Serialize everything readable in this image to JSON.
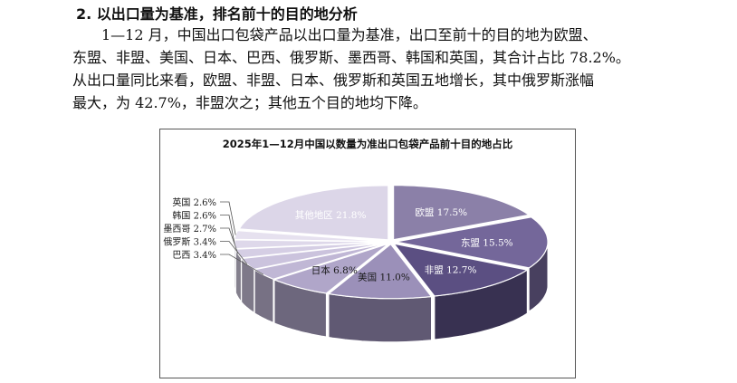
{
  "heading": "2. 以出口量为基准，排名前十的目的地分析",
  "paragraph_lines": [
    "1—12 月，中国出口包袋产品以出口量为基准，出口至前十的目的地为欧盟、",
    "东盟、非盟、美国、日本、巴西、俄罗斯、墨西哥、韩国和英国，其合计占比 78.2%。",
    "从出口量同比来看，欧盟、非盟、日本、俄罗斯和英国五地增长，其中俄罗斯涨幅",
    "最大，为 42.7%，非盟次之；其他五个目的地均下降。"
  ],
  "chart_data": {
    "type": "pie",
    "style": "3d-exploded",
    "title": "2025年1—12月中国以数量为准出口包袋产品前十目的地占比",
    "unit": "%",
    "slices": [
      {
        "name": "欧盟",
        "value": 17.5,
        "label": "欧盟 17.5%",
        "color": "#8b80a8"
      },
      {
        "name": "东盟",
        "value": 15.5,
        "label": "东盟 15.5%",
        "color": "#74679a"
      },
      {
        "name": "非盟",
        "value": 12.7,
        "label": "非盟 12.7%",
        "color": "#5b4f82"
      },
      {
        "name": "美国",
        "value": 11.0,
        "label": "美国 11.0%",
        "color": "#9b90b9"
      },
      {
        "name": "日本",
        "value": 6.8,
        "label": "日本 6.8%",
        "color": "#b0a6c9"
      },
      {
        "name": "巴西",
        "value": 3.4,
        "label": "巴西 3.4%",
        "color": "#c0b7d5"
      },
      {
        "name": "俄罗斯",
        "value": 3.4,
        "label": "俄罗斯 3.4%",
        "color": "#cbc3dd"
      },
      {
        "name": "墨西哥",
        "value": 2.7,
        "label": "墨西哥 2.7%",
        "color": "#d5cee4"
      },
      {
        "name": "韩国",
        "value": 2.6,
        "label": "韩国 2.6%",
        "color": "#ded8ea"
      },
      {
        "name": "英国",
        "value": 2.6,
        "label": "英国 2.6%",
        "color": "#e6e1ef"
      },
      {
        "name": "其他地区",
        "value": 21.8,
        "label": "其他地区 21.8%",
        "color": "#dcd6e8"
      }
    ],
    "start_angle_deg": -90,
    "direction": "clockwise",
    "legend": "none"
  }
}
